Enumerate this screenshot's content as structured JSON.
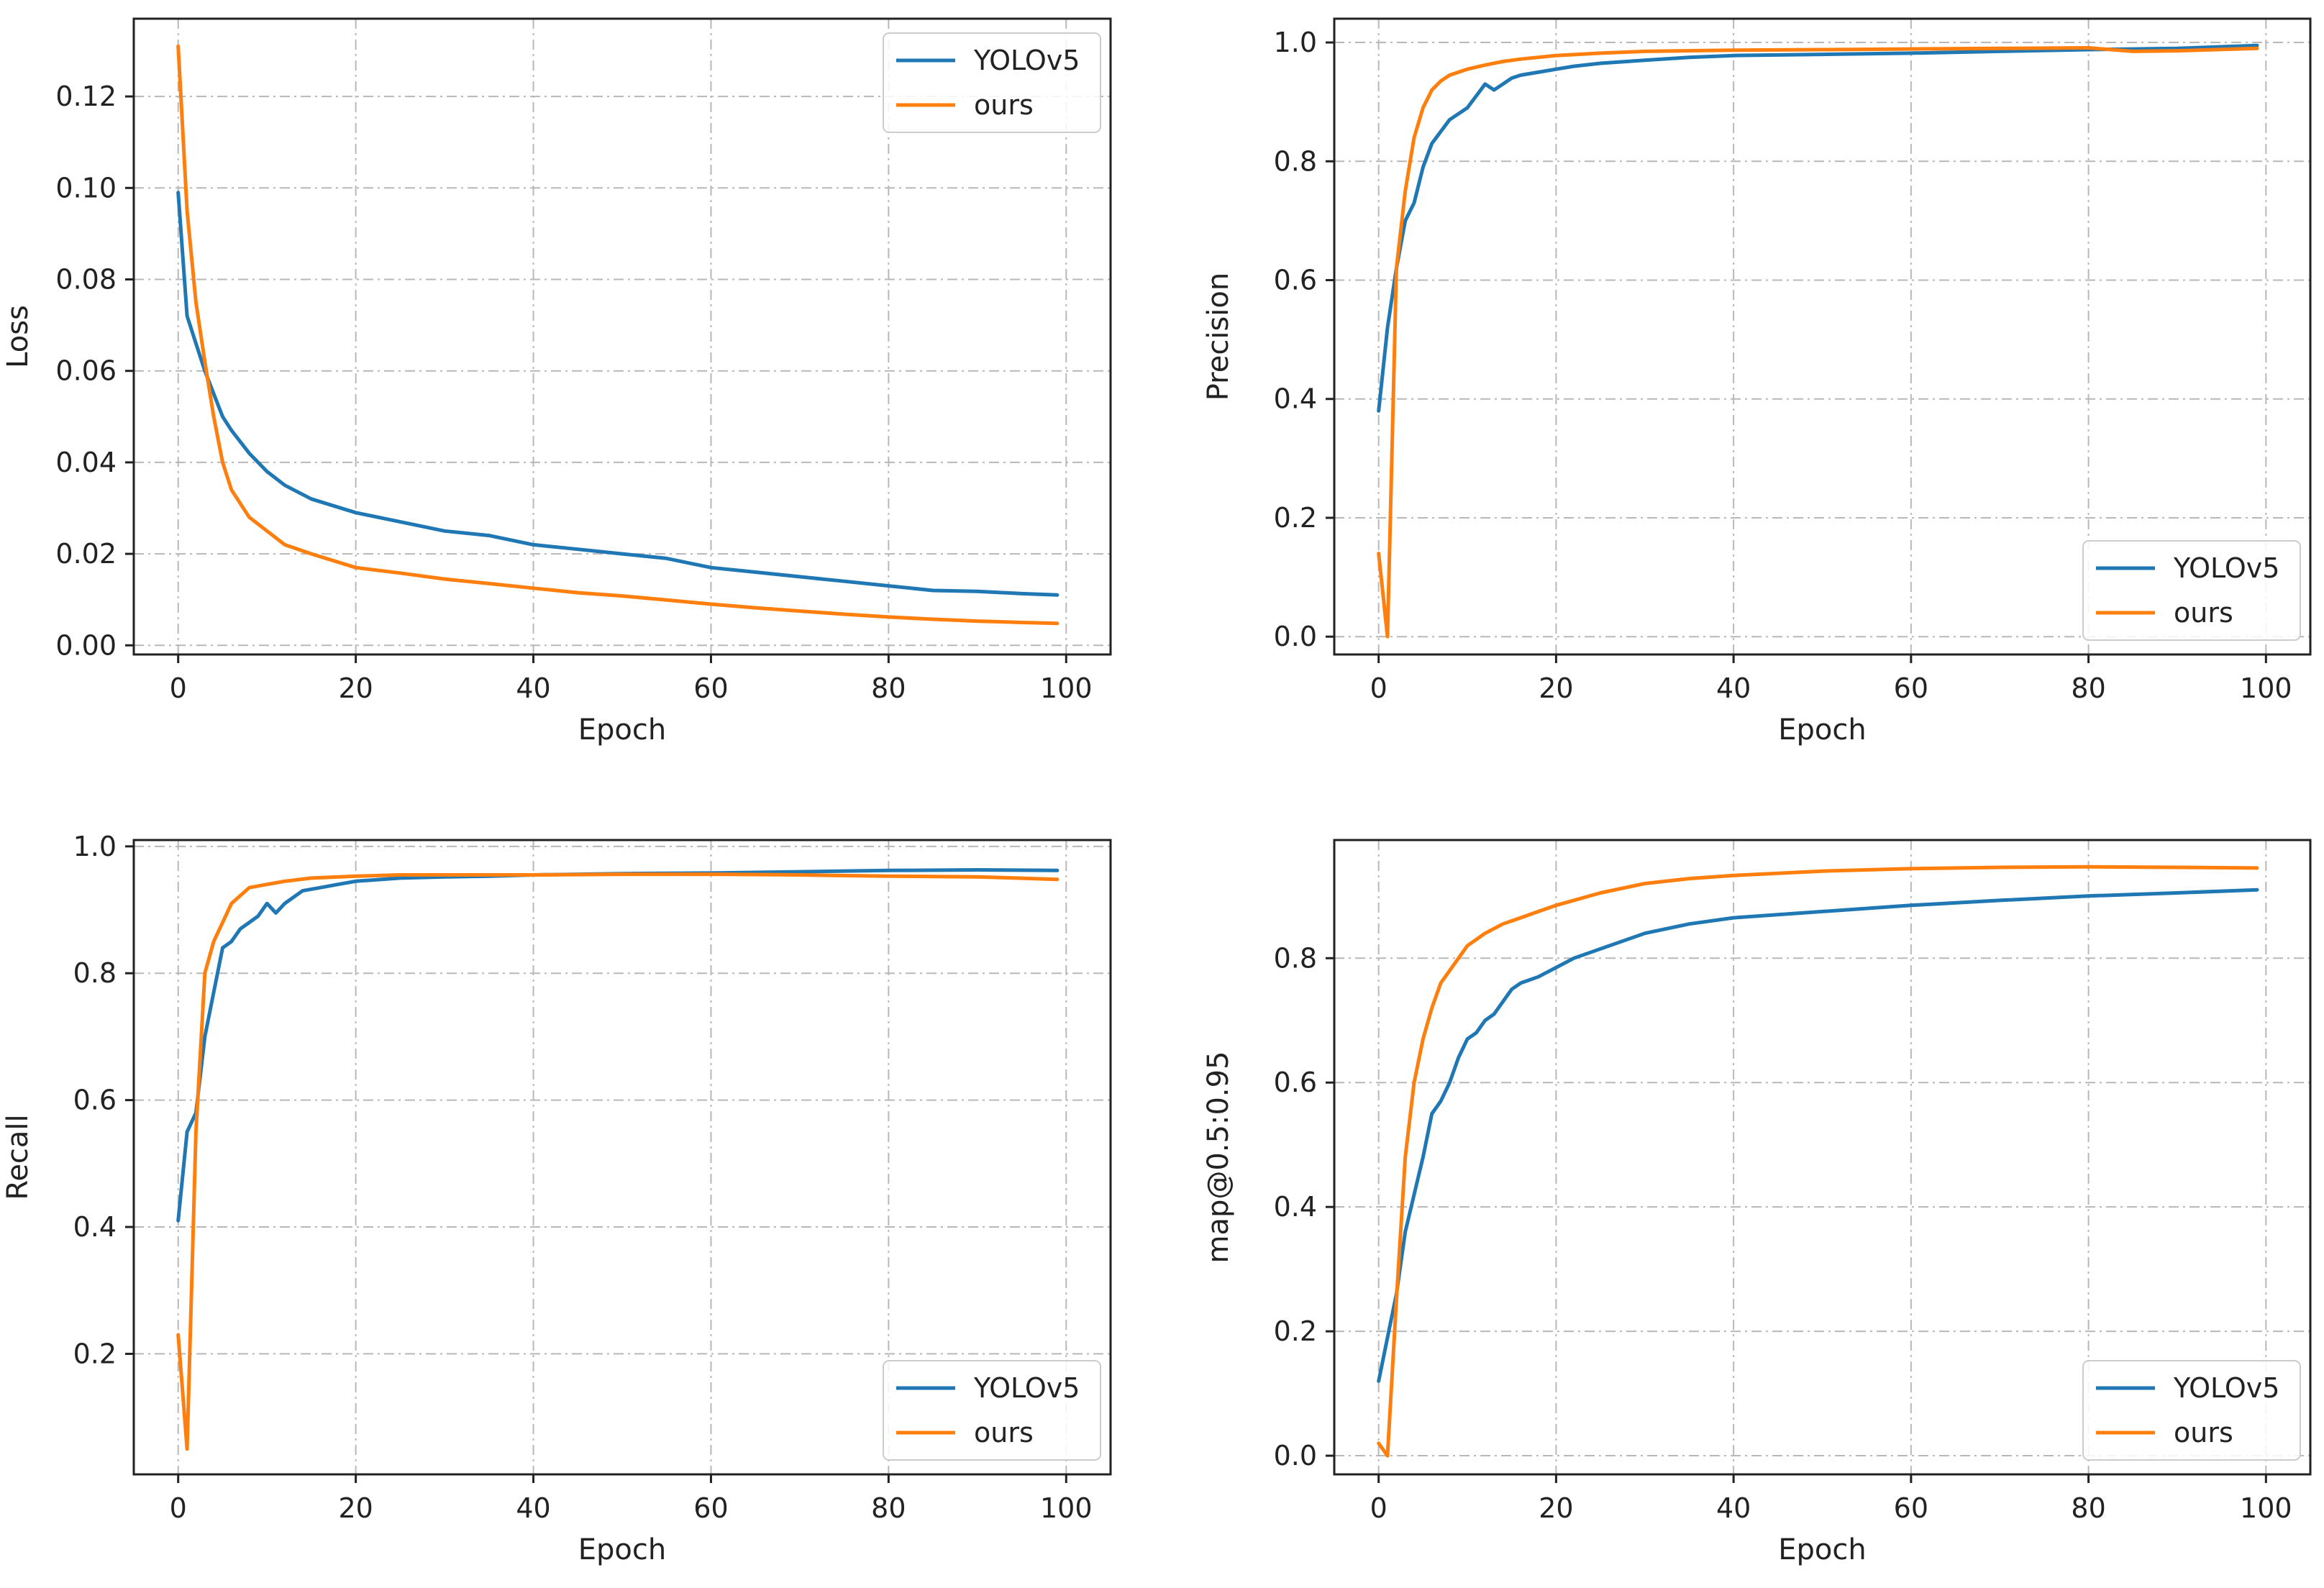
{
  "colors": {
    "yolov5": "#1f77b4",
    "ours": "#ff7f0e",
    "axis": "#222222",
    "grid": "#b8b8b8"
  },
  "chart_data": [
    {
      "type": "line",
      "xlabel": "Epoch",
      "ylabel": "Loss",
      "xlim": [
        -5,
        105
      ],
      "ylim": [
        -0.002,
        0.137
      ],
      "xticks": [
        0,
        20,
        40,
        60,
        80,
        100
      ],
      "xtick_labels": [
        "0",
        "20",
        "40",
        "60",
        "80",
        "100"
      ],
      "yticks": [
        0,
        0.02,
        0.04,
        0.06,
        0.08,
        0.1,
        0.12
      ],
      "ytick_labels": [
        "0.00",
        "0.02",
        "0.04",
        "0.06",
        "0.08",
        "0.10",
        "0.12"
      ],
      "legend_position": "top-right",
      "grid": true,
      "series": [
        {
          "name": "YOLOv5",
          "color_key": "yolov5",
          "x": [
            0,
            1,
            2,
            3,
            4,
            5,
            6,
            8,
            10,
            12,
            15,
            20,
            25,
            30,
            35,
            40,
            45,
            50,
            55,
            60,
            65,
            70,
            75,
            80,
            85,
            90,
            95,
            99
          ],
          "y": [
            0.099,
            0.072,
            0.066,
            0.06,
            0.055,
            0.05,
            0.047,
            0.042,
            0.038,
            0.035,
            0.032,
            0.029,
            0.027,
            0.025,
            0.024,
            0.022,
            0.021,
            0.02,
            0.019,
            0.017,
            0.016,
            0.015,
            0.014,
            0.013,
            0.012,
            0.0118,
            0.0113,
            0.011
          ]
        },
        {
          "name": "ours",
          "color_key": "ours",
          "x": [
            0,
            1,
            2,
            3,
            4,
            5,
            6,
            8,
            10,
            12,
            15,
            20,
            25,
            30,
            35,
            40,
            45,
            50,
            55,
            60,
            65,
            70,
            75,
            80,
            85,
            90,
            95,
            99
          ],
          "y": [
            0.131,
            0.095,
            0.075,
            0.062,
            0.05,
            0.04,
            0.034,
            0.028,
            0.025,
            0.022,
            0.02,
            0.017,
            0.0158,
            0.0145,
            0.0135,
            0.0125,
            0.0115,
            0.0108,
            0.0099,
            0.009,
            0.0082,
            0.0075,
            0.0068,
            0.0062,
            0.0057,
            0.0053,
            0.005,
            0.0048
          ]
        }
      ]
    },
    {
      "type": "line",
      "xlabel": "Epoch",
      "ylabel": "Precision",
      "xlim": [
        -5,
        105
      ],
      "ylim": [
        -0.03,
        1.04
      ],
      "xticks": [
        0,
        20,
        40,
        60,
        80,
        100
      ],
      "xtick_labels": [
        "0",
        "20",
        "40",
        "60",
        "80",
        "100"
      ],
      "yticks": [
        0,
        0.2,
        0.4,
        0.6,
        0.8,
        1.0
      ],
      "ytick_labels": [
        "0.0",
        "0.2",
        "0.4",
        "0.6",
        "0.8",
        "1.0"
      ],
      "legend_position": "bottom-right",
      "grid": true,
      "series": [
        {
          "name": "YOLOv5",
          "color_key": "yolov5",
          "x": [
            0,
            1,
            2,
            3,
            4,
            5,
            6,
            7,
            8,
            9,
            10,
            11,
            12,
            13,
            14,
            15,
            16,
            18,
            20,
            22,
            25,
            30,
            35,
            40,
            50,
            60,
            70,
            80,
            90,
            99
          ],
          "y": [
            0.38,
            0.52,
            0.62,
            0.7,
            0.73,
            0.79,
            0.83,
            0.85,
            0.87,
            0.88,
            0.89,
            0.91,
            0.93,
            0.92,
            0.93,
            0.94,
            0.945,
            0.95,
            0.955,
            0.96,
            0.965,
            0.97,
            0.975,
            0.978,
            0.98,
            0.982,
            0.985,
            0.988,
            0.99,
            0.995
          ]
        },
        {
          "name": "ours",
          "color_key": "ours",
          "x": [
            0,
            1,
            2,
            3,
            4,
            5,
            6,
            7,
            8,
            10,
            12,
            14,
            16,
            20,
            25,
            30,
            40,
            50,
            60,
            70,
            80,
            85,
            90,
            99
          ],
          "y": [
            0.14,
            0.0,
            0.62,
            0.75,
            0.84,
            0.89,
            0.92,
            0.935,
            0.945,
            0.955,
            0.962,
            0.968,
            0.972,
            0.978,
            0.982,
            0.985,
            0.987,
            0.988,
            0.989,
            0.99,
            0.991,
            0.985,
            0.986,
            0.99
          ]
        }
      ]
    },
    {
      "type": "line",
      "xlabel": "Epoch",
      "ylabel": "Recall",
      "xlim": [
        -5,
        105
      ],
      "ylim": [
        0.01,
        1.01
      ],
      "xticks": [
        0,
        20,
        40,
        60,
        80,
        100
      ],
      "xtick_labels": [
        "0",
        "20",
        "40",
        "60",
        "80",
        "100"
      ],
      "yticks": [
        0.2,
        0.4,
        0.6,
        0.8,
        1.0
      ],
      "ytick_labels": [
        "0.2",
        "0.4",
        "0.6",
        "0.8",
        "1.0"
      ],
      "legend_position": "bottom-right",
      "grid": true,
      "series": [
        {
          "name": "YOLOv5",
          "color_key": "yolov5",
          "x": [
            0,
            1,
            2,
            3,
            4,
            5,
            6,
            7,
            8,
            9,
            10,
            11,
            12,
            14,
            16,
            18,
            20,
            25,
            30,
            35,
            40,
            50,
            60,
            70,
            80,
            90,
            99
          ],
          "y": [
            0.41,
            0.55,
            0.58,
            0.7,
            0.77,
            0.84,
            0.85,
            0.87,
            0.88,
            0.89,
            0.91,
            0.895,
            0.91,
            0.93,
            0.935,
            0.94,
            0.945,
            0.95,
            0.952,
            0.953,
            0.955,
            0.957,
            0.958,
            0.96,
            0.962,
            0.963,
            0.962
          ]
        },
        {
          "name": "ours",
          "color_key": "ours",
          "x": [
            0,
            1,
            2,
            3,
            4,
            5,
            6,
            8,
            10,
            12,
            15,
            20,
            25,
            30,
            40,
            50,
            60,
            70,
            80,
            90,
            99
          ],
          "y": [
            0.23,
            0.05,
            0.55,
            0.8,
            0.85,
            0.88,
            0.91,
            0.935,
            0.94,
            0.945,
            0.95,
            0.953,
            0.955,
            0.955,
            0.955,
            0.956,
            0.956,
            0.955,
            0.953,
            0.952,
            0.948
          ]
        }
      ]
    },
    {
      "type": "line",
      "xlabel": "Epoch",
      "ylabel": "map@0.5:0.95",
      "xlim": [
        -5,
        105
      ],
      "ylim": [
        -0.03,
        0.99
      ],
      "xticks": [
        0,
        20,
        40,
        60,
        80,
        100
      ],
      "xtick_labels": [
        "0",
        "20",
        "40",
        "60",
        "80",
        "100"
      ],
      "yticks": [
        0,
        0.2,
        0.4,
        0.6,
        0.8
      ],
      "ytick_labels": [
        "0.0",
        "0.2",
        "0.4",
        "0.6",
        "0.8"
      ],
      "legend_position": "bottom-right",
      "grid": true,
      "series": [
        {
          "name": "YOLOv5",
          "color_key": "yolov5",
          "x": [
            0,
            1,
            2,
            3,
            4,
            5,
            6,
            7,
            8,
            9,
            10,
            11,
            12,
            13,
            14,
            15,
            16,
            18,
            20,
            22,
            25,
            30,
            35,
            40,
            50,
            60,
            70,
            80,
            90,
            99
          ],
          "y": [
            0.12,
            0.19,
            0.26,
            0.36,
            0.42,
            0.48,
            0.55,
            0.57,
            0.6,
            0.64,
            0.67,
            0.68,
            0.7,
            0.71,
            0.73,
            0.75,
            0.76,
            0.77,
            0.785,
            0.8,
            0.815,
            0.84,
            0.855,
            0.865,
            0.875,
            0.885,
            0.893,
            0.9,
            0.905,
            0.91
          ]
        },
        {
          "name": "ours",
          "color_key": "ours",
          "x": [
            0,
            1,
            2,
            3,
            4,
            5,
            6,
            7,
            8,
            9,
            10,
            12,
            14,
            16,
            18,
            20,
            25,
            30,
            35,
            40,
            50,
            60,
            70,
            80,
            90,
            99
          ],
          "y": [
            0.02,
            0.0,
            0.25,
            0.48,
            0.6,
            0.67,
            0.72,
            0.76,
            0.78,
            0.8,
            0.82,
            0.84,
            0.855,
            0.865,
            0.875,
            0.885,
            0.905,
            0.92,
            0.928,
            0.933,
            0.94,
            0.944,
            0.946,
            0.947,
            0.946,
            0.945
          ]
        }
      ]
    }
  ]
}
